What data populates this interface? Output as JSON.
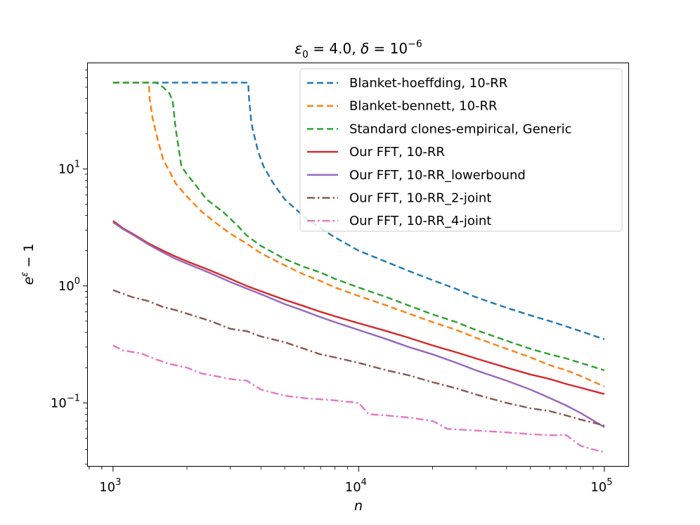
{
  "chart_data": {
    "type": "line",
    "title_parts": {
      "eps": "ε",
      "eps_sub": "0",
      "eq1": " = 4.0, ",
      "delta": "δ",
      "eq2": " = 10",
      "exp": "−6"
    },
    "xlabel": "n",
    "ylabel_parts": {
      "base": "e",
      "exp": "ε",
      "tail": " − 1"
    },
    "xscale": "log",
    "yscale": "log",
    "xlim": [
      790,
      126000
    ],
    "ylim": [
      0.0285,
      80
    ],
    "xticks": [
      {
        "base": "10",
        "exp": "3",
        "value": 1000
      },
      {
        "base": "10",
        "exp": "4",
        "value": 10000
      },
      {
        "base": "10",
        "exp": "5",
        "value": 100000
      }
    ],
    "yticks": [
      {
        "base": "10",
        "exp": "−1",
        "value": 0.1
      },
      {
        "base": "10",
        "exp": "0",
        "value": 1
      },
      {
        "base": "10",
        "exp": "1",
        "value": 10
      }
    ],
    "legend_position": "upper-right",
    "grid": false,
    "series": [
      {
        "name": "Blanket-hoeffding, 10-RR",
        "color": "#1f77b4",
        "style": "dashed",
        "points": [
          [
            1000,
            54.6
          ],
          [
            3550,
            54.6
          ],
          [
            3580,
            40
          ],
          [
            3650,
            26
          ],
          [
            3700,
            22
          ],
          [
            3900,
            14
          ],
          [
            4100,
            10.5
          ],
          [
            4500,
            7.5
          ],
          [
            5000,
            5.5
          ],
          [
            6000,
            3.9
          ],
          [
            7000,
            3.1
          ],
          [
            8000,
            2.6
          ],
          [
            10000,
            2.0
          ],
          [
            13000,
            1.6
          ],
          [
            16000,
            1.34
          ],
          [
            20000,
            1.12
          ],
          [
            25000,
            0.94
          ],
          [
            30000,
            0.8
          ],
          [
            40000,
            0.65
          ],
          [
            50000,
            0.56
          ],
          [
            60000,
            0.5
          ],
          [
            70000,
            0.45
          ],
          [
            80000,
            0.41
          ],
          [
            100000,
            0.35
          ]
        ]
      },
      {
        "name": "Blanket-bennett, 10-RR",
        "color": "#ff7f0e",
        "style": "dashed",
        "points": [
          [
            1000,
            54.6
          ],
          [
            1400,
            54.6
          ],
          [
            1410,
            40
          ],
          [
            1450,
            27
          ],
          [
            1500,
            20
          ],
          [
            1600,
            12
          ],
          [
            1700,
            9.5
          ],
          [
            1800,
            7.5
          ],
          [
            2000,
            5.8
          ],
          [
            2300,
            4.3
          ],
          [
            2600,
            3.5
          ],
          [
            3000,
            2.8
          ],
          [
            3500,
            2.3
          ],
          [
            4000,
            1.9
          ],
          [
            5000,
            1.5
          ],
          [
            6000,
            1.25
          ],
          [
            7000,
            1.1
          ],
          [
            8000,
            0.97
          ],
          [
            10000,
            0.82
          ],
          [
            13000,
            0.68
          ],
          [
            16000,
            0.58
          ],
          [
            20000,
            0.49
          ],
          [
            25000,
            0.42
          ],
          [
            30000,
            0.36
          ],
          [
            40000,
            0.29
          ],
          [
            50000,
            0.245
          ],
          [
            60000,
            0.21
          ],
          [
            70000,
            0.19
          ],
          [
            80000,
            0.17
          ],
          [
            100000,
            0.138
          ]
        ]
      },
      {
        "name": "Standard clones-empirical, Generic",
        "color": "#2ca02c",
        "style": "dashed",
        "points": [
          [
            1000,
            54.6
          ],
          [
            1500,
            54.6
          ],
          [
            1600,
            50
          ],
          [
            1700,
            44
          ],
          [
            1750,
            38
          ],
          [
            1800,
            22
          ],
          [
            1850,
            15
          ],
          [
            1900,
            10.5
          ],
          [
            2000,
            9.0
          ],
          [
            2200,
            7.0
          ],
          [
            2400,
            5.5
          ],
          [
            2800,
            4.3
          ],
          [
            3200,
            3.3
          ],
          [
            3500,
            2.7
          ],
          [
            4000,
            2.2
          ],
          [
            5000,
            1.7
          ],
          [
            6000,
            1.45
          ],
          [
            7000,
            1.3
          ],
          [
            8000,
            1.15
          ],
          [
            10000,
            0.97
          ],
          [
            13000,
            0.8
          ],
          [
            16000,
            0.68
          ],
          [
            20000,
            0.57
          ],
          [
            25000,
            0.49
          ],
          [
            30000,
            0.42
          ],
          [
            40000,
            0.34
          ],
          [
            50000,
            0.29
          ],
          [
            60000,
            0.26
          ],
          [
            70000,
            0.24
          ],
          [
            80000,
            0.22
          ],
          [
            100000,
            0.19
          ]
        ]
      },
      {
        "name": "Our FFT, 10-RR",
        "color": "#d62728",
        "style": "solid",
        "points": [
          [
            1000,
            3.6
          ],
          [
            1100,
            3.1
          ],
          [
            1200,
            2.8
          ],
          [
            1400,
            2.3
          ],
          [
            1600,
            2.0
          ],
          [
            1800,
            1.78
          ],
          [
            2000,
            1.62
          ],
          [
            2500,
            1.35
          ],
          [
            3000,
            1.15
          ],
          [
            3500,
            1.0
          ],
          [
            4000,
            0.9
          ],
          [
            5000,
            0.76
          ],
          [
            6000,
            0.67
          ],
          [
            7000,
            0.6
          ],
          [
            8000,
            0.55
          ],
          [
            10000,
            0.48
          ],
          [
            13000,
            0.41
          ],
          [
            16000,
            0.36
          ],
          [
            20000,
            0.31
          ],
          [
            25000,
            0.27
          ],
          [
            30000,
            0.24
          ],
          [
            40000,
            0.2
          ],
          [
            50000,
            0.175
          ],
          [
            60000,
            0.16
          ],
          [
            70000,
            0.145
          ],
          [
            80000,
            0.135
          ],
          [
            100000,
            0.119
          ]
        ]
      },
      {
        "name": "Our FFT, 10-RR_lowerbound",
        "color": "#9467bd",
        "style": "solid",
        "points": [
          [
            1000,
            3.5
          ],
          [
            1100,
            3.05
          ],
          [
            1200,
            2.75
          ],
          [
            1400,
            2.25
          ],
          [
            1600,
            1.93
          ],
          [
            1800,
            1.7
          ],
          [
            2000,
            1.55
          ],
          [
            2500,
            1.28
          ],
          [
            3000,
            1.08
          ],
          [
            3500,
            0.95
          ],
          [
            4000,
            0.85
          ],
          [
            5000,
            0.7
          ],
          [
            6000,
            0.61
          ],
          [
            7000,
            0.54
          ],
          [
            8000,
            0.49
          ],
          [
            10000,
            0.42
          ],
          [
            13000,
            0.35
          ],
          [
            16000,
            0.3
          ],
          [
            20000,
            0.26
          ],
          [
            25000,
            0.22
          ],
          [
            30000,
            0.19
          ],
          [
            40000,
            0.155
          ],
          [
            50000,
            0.13
          ],
          [
            60000,
            0.11
          ],
          [
            70000,
            0.095
          ],
          [
            80000,
            0.082
          ],
          [
            100000,
            0.062
          ]
        ]
      },
      {
        "name": "Our FFT, 10-RR_2-joint",
        "color": "#8c564b",
        "style": "dashdot",
        "points": [
          [
            1000,
            0.92
          ],
          [
            1200,
            0.8
          ],
          [
            1400,
            0.74
          ],
          [
            1600,
            0.66
          ],
          [
            1800,
            0.62
          ],
          [
            2000,
            0.58
          ],
          [
            2500,
            0.5
          ],
          [
            3000,
            0.43
          ],
          [
            3500,
            0.41
          ],
          [
            4000,
            0.37
          ],
          [
            5000,
            0.33
          ],
          [
            6000,
            0.29
          ],
          [
            7000,
            0.26
          ],
          [
            8000,
            0.245
          ],
          [
            10000,
            0.22
          ],
          [
            13000,
            0.19
          ],
          [
            16000,
            0.172
          ],
          [
            20000,
            0.15
          ],
          [
            25000,
            0.133
          ],
          [
            30000,
            0.118
          ],
          [
            40000,
            0.1
          ],
          [
            50000,
            0.09
          ],
          [
            60000,
            0.085
          ],
          [
            70000,
            0.078
          ],
          [
            80000,
            0.072
          ],
          [
            100000,
            0.064
          ]
        ]
      },
      {
        "name": "Our FFT, 10-RR_4-joint",
        "color": "#e377c2",
        "style": "dashdot",
        "points": [
          [
            1000,
            0.31
          ],
          [
            1100,
            0.28
          ],
          [
            1300,
            0.265
          ],
          [
            1500,
            0.235
          ],
          [
            1700,
            0.215
          ],
          [
            2000,
            0.2
          ],
          [
            2300,
            0.178
          ],
          [
            2600,
            0.17
          ],
          [
            3000,
            0.16
          ],
          [
            3500,
            0.155
          ],
          [
            4000,
            0.13
          ],
          [
            5000,
            0.115
          ],
          [
            6000,
            0.11
          ],
          [
            8000,
            0.105
          ],
          [
            10000,
            0.1
          ],
          [
            11000,
            0.08
          ],
          [
            13000,
            0.078
          ],
          [
            16000,
            0.075
          ],
          [
            20000,
            0.07
          ],
          [
            23000,
            0.06
          ],
          [
            30000,
            0.058
          ],
          [
            40000,
            0.056
          ],
          [
            50000,
            0.054
          ],
          [
            60000,
            0.053
          ],
          [
            70000,
            0.053
          ],
          [
            80000,
            0.043
          ],
          [
            90000,
            0.04
          ],
          [
            100000,
            0.038
          ]
        ]
      }
    ]
  }
}
